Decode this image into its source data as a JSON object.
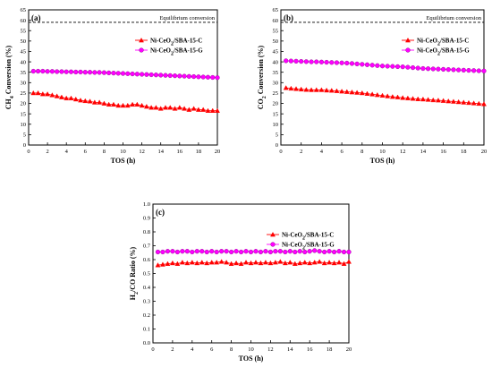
{
  "chart_data": [
    {
      "type": "scatter",
      "panel_label": "(a)",
      "xlabel": "TOS (h)",
      "ylabel": "CH4 Conversion (%)",
      "xlim": [
        0,
        20
      ],
      "ylim": [
        0,
        65
      ],
      "xticks": [
        0,
        2,
        4,
        6,
        8,
        10,
        12,
        14,
        16,
        18,
        20
      ],
      "yticks": [
        0,
        5,
        10,
        15,
        20,
        25,
        30,
        35,
        40,
        45,
        50,
        55,
        60,
        65
      ],
      "reference_line": {
        "label": "Equilibrium conversion",
        "y": 59
      },
      "legend_position": "upper-right",
      "series": [
        {
          "name": "Ni-CeO2/SBA-15-C",
          "marker": "triangle",
          "color": "#ff0000",
          "x": [
            0.5,
            1,
            1.5,
            2,
            2.5,
            3,
            3.5,
            4,
            4.5,
            5,
            5.5,
            6,
            6.5,
            7,
            7.5,
            8,
            8.5,
            9,
            9.5,
            10,
            10.5,
            11,
            11.5,
            12,
            12.5,
            13,
            13.5,
            14,
            14.5,
            15,
            15.5,
            16,
            16.5,
            17,
            17.5,
            18,
            18.5,
            19,
            19.5,
            20
          ],
          "y": [
            25,
            25,
            24.5,
            24.5,
            24,
            23.5,
            23,
            22.5,
            22.5,
            22,
            21.5,
            21.2,
            21,
            20.5,
            20.5,
            20,
            19.5,
            19.5,
            19,
            19,
            19,
            19.5,
            19.5,
            19,
            18.5,
            18,
            18,
            17.5,
            18,
            18,
            17.5,
            18,
            17.5,
            17,
            17.5,
            17,
            17,
            16.5,
            16.5,
            16.5
          ]
        },
        {
          "name": "Ni-CeO2/SBA-15-G",
          "marker": "circle",
          "color": "#ff00ff",
          "x": [
            0.5,
            1,
            1.5,
            2,
            2.5,
            3,
            3.5,
            4,
            4.5,
            5,
            5.5,
            6,
            6.5,
            7,
            7.5,
            8,
            8.5,
            9,
            9.5,
            10,
            10.5,
            11,
            11.5,
            12,
            12.5,
            13,
            13.5,
            14,
            14.5,
            15,
            15.5,
            16,
            16.5,
            17,
            17.5,
            18,
            18.5,
            19,
            19.5,
            20
          ],
          "y": [
            35.5,
            35.5,
            35.5,
            35.4,
            35.4,
            35.3,
            35.3,
            35.2,
            35.2,
            35.1,
            35.1,
            35,
            35,
            34.9,
            34.9,
            34.8,
            34.7,
            34.6,
            34.5,
            34.4,
            34.3,
            34.2,
            34.1,
            34,
            33.9,
            33.8,
            33.7,
            33.6,
            33.5,
            33.4,
            33.3,
            33.2,
            33.1,
            33,
            32.9,
            32.8,
            32.7,
            32.6,
            32.5,
            32.4
          ]
        }
      ]
    },
    {
      "type": "scatter",
      "panel_label": "(b)",
      "xlabel": "TOS (h)",
      "ylabel": "CO2 Conversion (%)",
      "xlim": [
        0,
        20
      ],
      "ylim": [
        0,
        65
      ],
      "xticks": [
        0,
        2,
        4,
        6,
        8,
        10,
        12,
        14,
        16,
        18,
        20
      ],
      "yticks": [
        0,
        5,
        10,
        15,
        20,
        25,
        30,
        35,
        40,
        45,
        50,
        55,
        60,
        65
      ],
      "reference_line": {
        "label": "Equilibrium conversion",
        "y": 59
      },
      "legend_position": "upper-right",
      "series": [
        {
          "name": "Ni-CeO2/SBA-15-C",
          "marker": "triangle",
          "color": "#ff0000",
          "x": [
            0.5,
            1,
            1.5,
            2,
            2.5,
            3,
            3.5,
            4,
            4.5,
            5,
            5.5,
            6,
            6.5,
            7,
            7.5,
            8,
            8.5,
            9,
            9.5,
            10,
            10.5,
            11,
            11.5,
            12,
            12.5,
            13,
            13.5,
            14,
            14.5,
            15,
            15.5,
            16,
            16.5,
            17,
            17.5,
            18,
            18.5,
            19,
            19.5,
            20
          ],
          "y": [
            27.5,
            27.2,
            27,
            26.8,
            26.6,
            26.5,
            26.5,
            26.5,
            26.3,
            26.2,
            26,
            25.8,
            25.6,
            25.4,
            25.2,
            25,
            24.7,
            24.4,
            24.1,
            23.8,
            23.5,
            23.2,
            23,
            22.7,
            22.5,
            22.3,
            22.1,
            22,
            21.8,
            21.6,
            21.5,
            21.3,
            21.1,
            20.9,
            20.7,
            20.5,
            20.3,
            20.1,
            19.9,
            19.7
          ]
        },
        {
          "name": "Ni-CeO2/SBA-15-G",
          "marker": "circle",
          "color": "#ff00ff",
          "x": [
            0.5,
            1,
            1.5,
            2,
            2.5,
            3,
            3.5,
            4,
            4.5,
            5,
            5.5,
            6,
            6.5,
            7,
            7.5,
            8,
            8.5,
            9,
            9.5,
            10,
            10.5,
            11,
            11.5,
            12,
            12.5,
            13,
            13.5,
            14,
            14.5,
            15,
            15.5,
            16,
            16.5,
            17,
            17.5,
            18,
            18.5,
            19,
            19.5,
            20
          ],
          "y": [
            40.5,
            40.4,
            40.3,
            40.2,
            40.1,
            40,
            40,
            39.9,
            39.8,
            39.7,
            39.6,
            39.5,
            39.4,
            39.2,
            39,
            38.8,
            38.6,
            38.4,
            38.2,
            38,
            37.9,
            37.8,
            37.7,
            37.6,
            37.4,
            37.2,
            37,
            36.8,
            36.7,
            36.6,
            36.5,
            36.4,
            36.3,
            36.2,
            36.1,
            36,
            35.9,
            35.8,
            35.7,
            35.6
          ]
        }
      ]
    },
    {
      "type": "scatter",
      "panel_label": "(c)",
      "xlabel": "TOS (h)",
      "ylabel": "H2/CO Ratio (%)",
      "xlim": [
        0,
        20
      ],
      "ylim": [
        0.0,
        1.0
      ],
      "xticks": [
        0,
        2,
        4,
        6,
        8,
        10,
        12,
        14,
        16,
        18,
        20
      ],
      "yticks": [
        0.0,
        0.1,
        0.2,
        0.3,
        0.4,
        0.5,
        0.6,
        0.7,
        0.8,
        0.9,
        1.0
      ],
      "legend_position": "upper-right",
      "series": [
        {
          "name": "Ni-CeO2/SBA-15-C",
          "marker": "triangle",
          "color": "#ff0000",
          "x": [
            0.5,
            1,
            1.5,
            2,
            2.5,
            3,
            3.5,
            4,
            4.5,
            5,
            5.5,
            6,
            6.5,
            7,
            7.5,
            8,
            8.5,
            9,
            9.5,
            10,
            10.5,
            11,
            11.5,
            12,
            12.5,
            13,
            13.5,
            14,
            14.5,
            15,
            15.5,
            16,
            16.5,
            17,
            17.5,
            18,
            18.5,
            19,
            19.5,
            20
          ],
          "y": [
            0.56,
            0.565,
            0.57,
            0.575,
            0.57,
            0.58,
            0.575,
            0.58,
            0.575,
            0.58,
            0.575,
            0.58,
            0.58,
            0.585,
            0.58,
            0.57,
            0.575,
            0.57,
            0.58,
            0.575,
            0.58,
            0.575,
            0.58,
            0.575,
            0.58,
            0.585,
            0.575,
            0.58,
            0.57,
            0.575,
            0.58,
            0.575,
            0.58,
            0.585,
            0.575,
            0.58,
            0.575,
            0.58,
            0.57,
            0.585
          ]
        },
        {
          "name": "Ni-CeO2/SBA-15-G",
          "marker": "circle",
          "color": "#ff00ff",
          "x": [
            0.5,
            1,
            1.5,
            2,
            2.5,
            3,
            3.5,
            4,
            4.5,
            5,
            5.5,
            6,
            6.5,
            7,
            7.5,
            8,
            8.5,
            9,
            9.5,
            10,
            10.5,
            11,
            11.5,
            12,
            12.5,
            13,
            13.5,
            14,
            14.5,
            15,
            15.5,
            16,
            16.5,
            17,
            17.5,
            18,
            18.5,
            19,
            19.5,
            20
          ],
          "y": [
            0.655,
            0.655,
            0.66,
            0.66,
            0.655,
            0.66,
            0.66,
            0.655,
            0.66,
            0.66,
            0.655,
            0.66,
            0.655,
            0.66,
            0.66,
            0.655,
            0.66,
            0.655,
            0.66,
            0.655,
            0.66,
            0.655,
            0.66,
            0.655,
            0.66,
            0.66,
            0.655,
            0.66,
            0.655,
            0.66,
            0.655,
            0.66,
            0.665,
            0.66,
            0.655,
            0.66,
            0.655,
            0.66,
            0.655,
            0.655
          ]
        }
      ]
    }
  ]
}
